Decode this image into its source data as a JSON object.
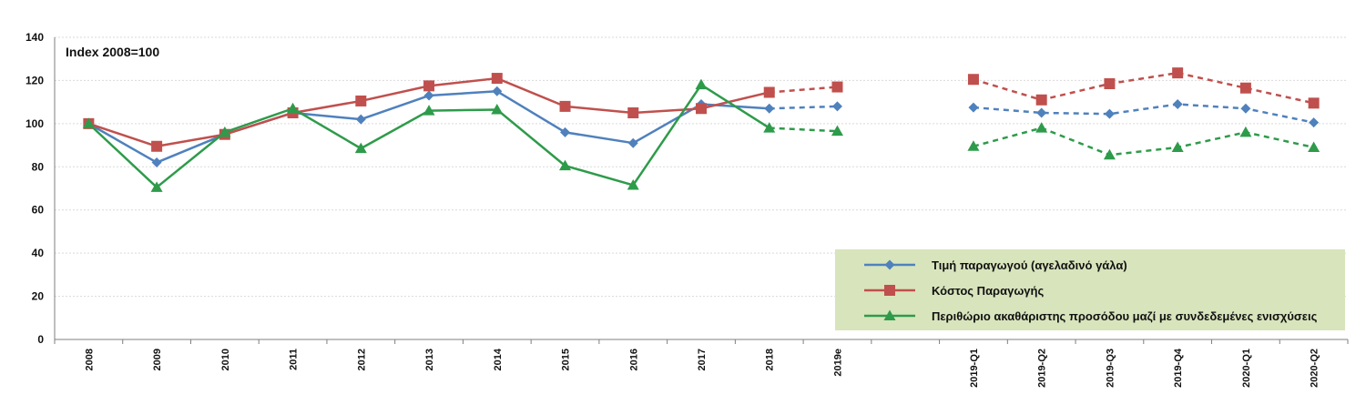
{
  "chart_data": {
    "type": "line",
    "title": "",
    "annotation": "Index 2008=100",
    "xlabel": "",
    "ylabel": "",
    "ylim": [
      0,
      140
    ],
    "yticks": [
      0,
      20,
      40,
      60,
      80,
      100,
      120,
      140
    ],
    "grid": true,
    "legend_position": "bottom-right",
    "legend_background": "#D8E4BC",
    "categories": [
      "2008",
      "2009",
      "2010",
      "2011",
      "2012",
      "2013",
      "2014",
      "2015",
      "2016",
      "2017",
      "2018",
      "2019e",
      "",
      "2019-Q1",
      "2019-Q2",
      "2019-Q3",
      "2019-Q4",
      "2020-Q1",
      "2020-Q2"
    ],
    "series": [
      {
        "name": "Τιμή παραγωγού (αγελαδινό γάλα)",
        "color": "#4F81BD",
        "marker": "diamond",
        "values": [
          100,
          82,
          95,
          105,
          102,
          113,
          115,
          96,
          91,
          109,
          107,
          108,
          null,
          107.5,
          105,
          104.5,
          109,
          107,
          100.5
        ]
      },
      {
        "name": "Κόστος Παραγωγής",
        "color": "#C0504D",
        "marker": "square",
        "values": [
          100,
          89.5,
          95,
          105,
          110.5,
          117.5,
          121,
          108,
          105,
          107,
          114.5,
          117,
          null,
          120.5,
          111,
          118.5,
          123.5,
          116.5,
          109.5
        ]
      },
      {
        "name": "Περιθώριο ακαθάριστης προσόδου μαζί με συνδεδεμένες ενισχύσεις",
        "color": "#2E9B4A",
        "marker": "triangle",
        "values": [
          100,
          70.5,
          96,
          107,
          88.5,
          106,
          106.5,
          80.5,
          71.5,
          118,
          98,
          96.5,
          null,
          89.5,
          98,
          85.5,
          89,
          96,
          89
        ]
      }
    ]
  }
}
